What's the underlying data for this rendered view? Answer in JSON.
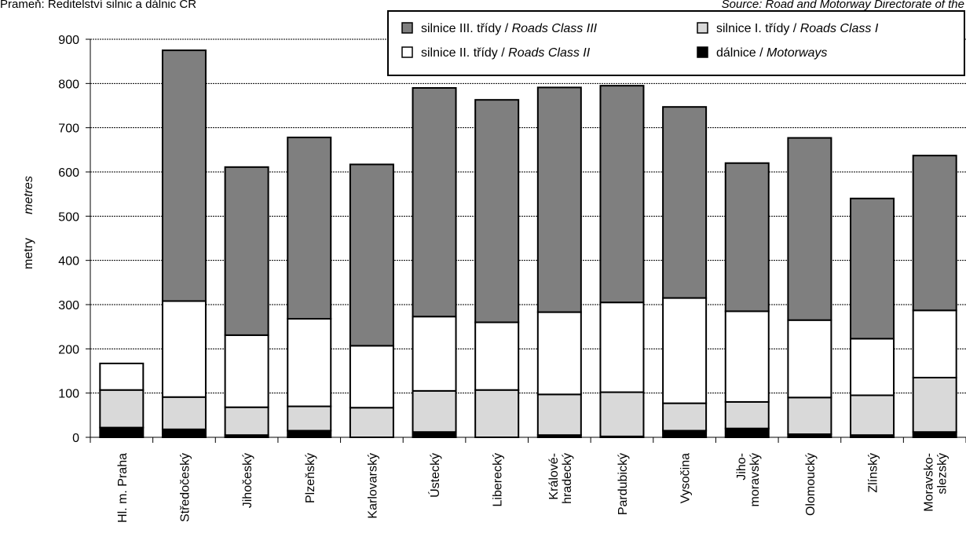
{
  "source_cz": "Prameň: Ředitelství silnic a dálnic ČR",
  "source_en": "Source: Road and Motorway Directorate of the",
  "chart_data": {
    "type": "bar",
    "stacked": true,
    "ylabel_cz": "metry",
    "ylabel_en": "metres",
    "ylim": [
      0,
      900
    ],
    "yticks": [
      0,
      100,
      200,
      300,
      400,
      500,
      600,
      700,
      800,
      900
    ],
    "grid": true,
    "legend_position": "top-right",
    "categories": [
      [
        "Hl. m. Praha"
      ],
      [
        "Středočeský"
      ],
      [
        "Jihočeský"
      ],
      [
        "Plzeňský"
      ],
      [
        "Karlovarský"
      ],
      [
        "Ústecký"
      ],
      [
        "Liberecký"
      ],
      [
        "Králové-",
        "hradecký"
      ],
      [
        "Pardubický"
      ],
      [
        "Vysočina"
      ],
      [
        "Jiho-",
        "moravský"
      ],
      [
        "Olomoucký"
      ],
      [
        "Zlínský"
      ],
      [
        "Moravsko-",
        "slezský"
      ]
    ],
    "series": [
      {
        "name_cz": "dálnice / ",
        "name_en": "Motorways",
        "color": "#000000",
        "values": [
          22,
          18,
          5,
          15,
          0,
          12,
          0,
          5,
          2,
          15,
          20,
          7,
          5,
          12
        ]
      },
      {
        "name_cz": "silnice I. třídy / ",
        "name_en": "Roads Class I",
        "color": "#d9d9d9",
        "values": [
          85,
          73,
          63,
          55,
          67,
          93,
          107,
          92,
          100,
          62,
          60,
          83,
          90,
          123
        ]
      },
      {
        "name_cz": "silnice II. třídy / ",
        "name_en": "Roads Class II",
        "color": "#ffffff",
        "values": [
          60,
          217,
          163,
          198,
          140,
          168,
          153,
          186,
          203,
          238,
          205,
          175,
          128,
          152
        ]
      },
      {
        "name_cz": "silnice III. třídy / ",
        "name_en": "Roads Class III",
        "color": "#7f7f7f",
        "values": [
          0,
          567,
          380,
          410,
          410,
          517,
          503,
          508,
          490,
          432,
          335,
          412,
          317,
          350
        ]
      }
    ],
    "legend_order": [
      3,
      1,
      2,
      0
    ]
  }
}
